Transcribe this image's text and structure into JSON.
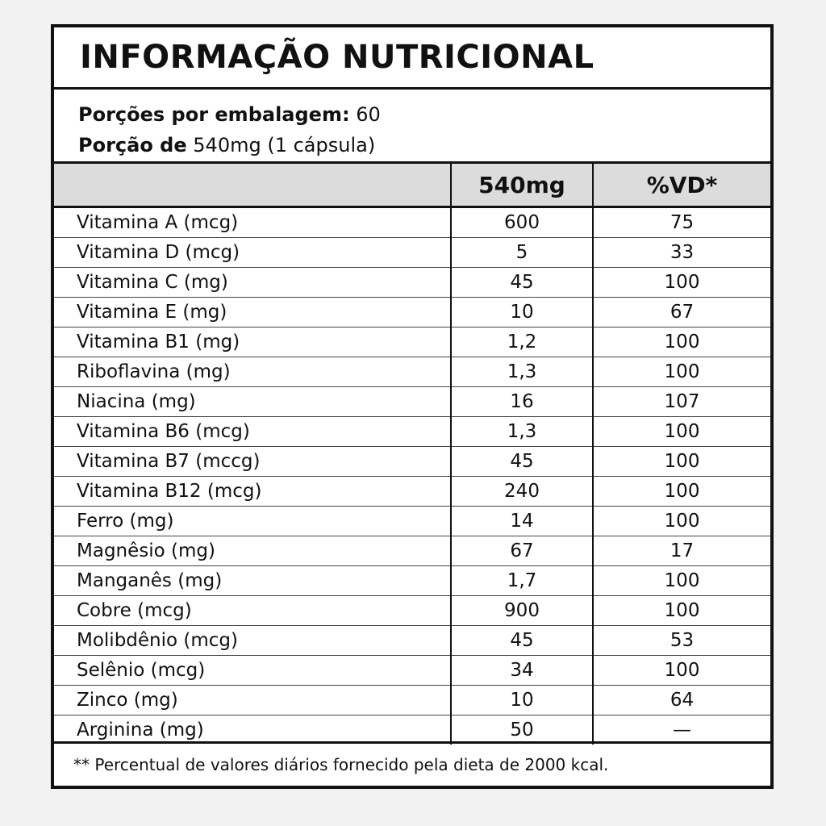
{
  "header": {
    "title": "INFORMAÇÃO NUTRICIONAL"
  },
  "serving": {
    "per_package_label": "Porções por embalagem:",
    "per_package_value": "60",
    "portion_label": "Porção de",
    "portion_value": "540mg (1 cápsula)"
  },
  "table": {
    "columns": [
      "540mg",
      "%VD*"
    ],
    "rows": [
      [
        "Vitamina A (mcg)",
        "600",
        "75"
      ],
      [
        "Vitamina D (mcg)",
        "5",
        "33"
      ],
      [
        "Vitamina C (mg)",
        "45",
        "100"
      ],
      [
        "Vitamina E (mg)",
        "10",
        "67"
      ],
      [
        "Vitamina B1 (mg)",
        "1,2",
        "100"
      ],
      [
        "Riboflavina (mg)",
        "1,3",
        "100"
      ],
      [
        "Niacina (mg)",
        "16",
        "107"
      ],
      [
        "Vitamina B6 (mcg)",
        "1,3",
        "100"
      ],
      [
        "Vitamina B7 (mccg)",
        "45",
        "100"
      ],
      [
        "Vitamina B12 (mcg)",
        "240",
        "100"
      ],
      [
        "Ferro (mg)",
        "14",
        "100"
      ],
      [
        "Magnêsio (mg)",
        "67",
        "17"
      ],
      [
        "Manganês (mg)",
        "1,7",
        "100"
      ],
      [
        "Cobre (mcg)",
        "900",
        "100"
      ],
      [
        "Molibdênio (mcg)",
        "45",
        "53"
      ],
      [
        "Selênio (mcg)",
        "34",
        "100"
      ],
      [
        "Zinco (mg)",
        "10",
        "64"
      ],
      [
        "Arginina (mg)",
        "50",
        "—"
      ]
    ]
  },
  "footer": {
    "note": "** Percentual de valores diários fornecido pela dieta de 2000 kcal."
  }
}
